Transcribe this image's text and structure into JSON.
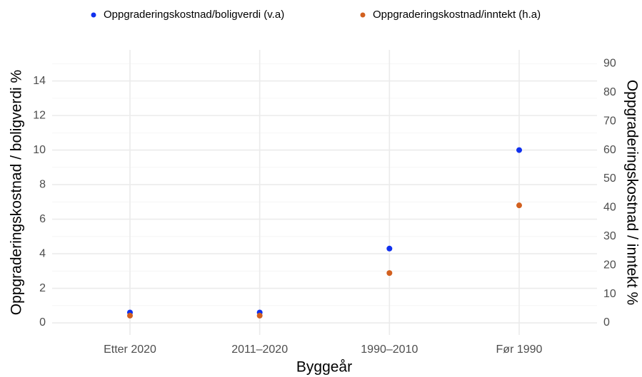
{
  "chart_data": {
    "type": "scatter",
    "categories": [
      "Etter 2020",
      "2011–2020",
      "1990–2010",
      "Før 1990"
    ],
    "series": [
      {
        "name": "Oppgraderingskostnad/boligverdi (v.a)",
        "color": "#1030ee",
        "values": [
          0.6,
          0.6,
          4.3,
          10.0
        ]
      },
      {
        "name": "Oppgraderingskostnad/inntekt (h.a)",
        "color": "#d2601f",
        "values": [
          2.5,
          2.5,
          17.3,
          40.8
        ],
        "axis": "y2"
      }
    ],
    "xlabel": "Byggeår",
    "ylabel": "Oppgraderingskostnad / boligverdi %",
    "y2label": "Oppgraderingskostnad / inntekt %",
    "ylim": [
      -0.7,
      15.8
    ],
    "yticks": [
      0,
      2,
      4,
      6,
      8,
      10,
      12,
      14
    ],
    "y2lim": [
      -4.2,
      94.8
    ],
    "y2ticks": [
      0,
      10,
      20,
      30,
      40,
      50,
      60,
      70,
      80,
      90
    ],
    "grid": true,
    "legend": "top"
  }
}
